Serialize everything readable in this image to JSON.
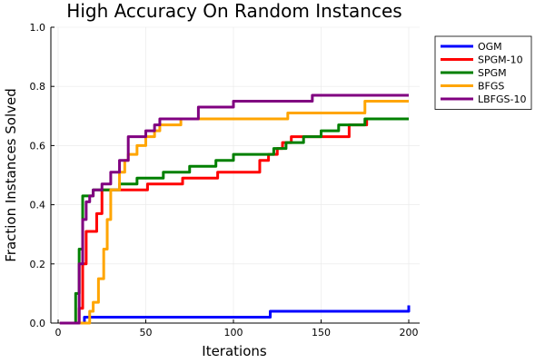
{
  "chart_data": {
    "type": "line",
    "title": "High Accuracy On Random Instances",
    "xlabel": "Iterations",
    "ylabel": "Fraction Instances Solved",
    "xlim": [
      0,
      200
    ],
    "ylim": [
      0,
      1
    ],
    "xticks": [
      0,
      50,
      100,
      150,
      200
    ],
    "yticks": [
      0.0,
      0.2,
      0.4,
      0.6,
      0.8,
      1.0
    ],
    "xtick_labels": [
      "0",
      "50",
      "100",
      "150",
      "200"
    ],
    "ytick_labels": [
      "0.0",
      "0.2",
      "0.4",
      "0.6",
      "0.8",
      "1.0"
    ],
    "grid": true,
    "legend_position": "top-right",
    "series": [
      {
        "name": "OGM",
        "color": "#0000ff",
        "x": [
          1,
          14,
          15,
          120,
          121,
          199,
          200
        ],
        "y": [
          0,
          0,
          0.02,
          0.02,
          0.04,
          0.04,
          0.06
        ]
      },
      {
        "name": "SPGM-10",
        "color": "#ff0000",
        "x": [
          1,
          10,
          12,
          14,
          16,
          20,
          22,
          25,
          30,
          50,
          51,
          70,
          71,
          90,
          91,
          110,
          115,
          120,
          125,
          128,
          133,
          135,
          140,
          145,
          150,
          160,
          166,
          170,
          176,
          178,
          200
        ],
        "y": [
          0,
          0,
          0.05,
          0.2,
          0.31,
          0.31,
          0.37,
          0.45,
          0.45,
          0.45,
          0.47,
          0.47,
          0.49,
          0.49,
          0.51,
          0.51,
          0.55,
          0.57,
          0.59,
          0.61,
          0.63,
          0.63,
          0.63,
          0.63,
          0.63,
          0.63,
          0.67,
          0.67,
          0.69,
          0.69,
          0.69
        ]
      },
      {
        "name": "SPGM",
        "color": "#008000",
        "x": [
          1,
          8,
          10,
          12,
          14,
          16,
          20,
          30,
          35,
          45,
          58,
          60,
          70,
          75,
          88,
          90,
          100,
          120,
          123,
          130,
          132,
          140,
          150,
          155,
          160,
          175,
          200
        ],
        "y": [
          0,
          0,
          0.1,
          0.25,
          0.43,
          0.43,
          0.45,
          0.45,
          0.47,
          0.49,
          0.49,
          0.51,
          0.51,
          0.53,
          0.53,
          0.55,
          0.57,
          0.57,
          0.59,
          0.61,
          0.61,
          0.63,
          0.65,
          0.65,
          0.67,
          0.69,
          0.69
        ]
      },
      {
        "name": "BFGS",
        "color": "#ffa500",
        "x": [
          1,
          16,
          18,
          20,
          23,
          26,
          28,
          30,
          35,
          38,
          40,
          45,
          50,
          55,
          58,
          65,
          70,
          75,
          100,
          130,
          131,
          170,
          175,
          200
        ],
        "y": [
          0,
          0,
          0.04,
          0.07,
          0.15,
          0.25,
          0.35,
          0.45,
          0.51,
          0.55,
          0.57,
          0.6,
          0.63,
          0.65,
          0.67,
          0.67,
          0.69,
          0.69,
          0.69,
          0.69,
          0.71,
          0.71,
          0.75,
          0.75
        ]
      },
      {
        "name": "LBFGS-10",
        "color": "#800080",
        "x": [
          1,
          10,
          12,
          14,
          16,
          18,
          20,
          25,
          30,
          35,
          40,
          45,
          50,
          55,
          58,
          75,
          80,
          85,
          100,
          105,
          145,
          150,
          175,
          200
        ],
        "y": [
          0,
          0,
          0.2,
          0.35,
          0.41,
          0.43,
          0.45,
          0.47,
          0.51,
          0.55,
          0.63,
          0.63,
          0.65,
          0.67,
          0.69,
          0.69,
          0.73,
          0.73,
          0.75,
          0.75,
          0.77,
          0.77,
          0.77,
          0.77
        ]
      }
    ]
  }
}
